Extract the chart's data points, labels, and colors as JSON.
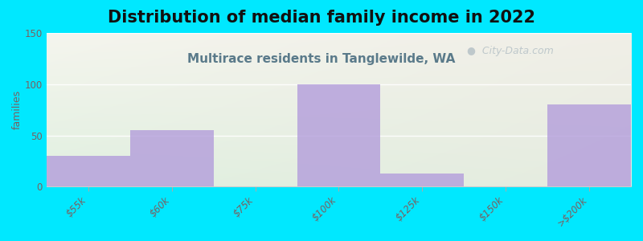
{
  "title": "Distribution of median family income in 2022",
  "subtitle": "Multirace residents in Tanglewilde, WA",
  "categories": [
    "$55k",
    "$60k",
    "$75k",
    "$100k",
    "$125k",
    "$150k",
    ">$200k"
  ],
  "values": [
    30,
    55,
    0,
    100,
    13,
    0,
    80
  ],
  "bar_color": "#b39ddb",
  "bar_alpha": 0.8,
  "background_outer": "#00e8ff",
  "ylabel": "families",
  "ylim": [
    0,
    150
  ],
  "yticks": [
    0,
    50,
    100,
    150
  ],
  "title_fontsize": 15,
  "title_color": "#111111",
  "subtitle_fontsize": 11,
  "subtitle_color": "#5a7a8a",
  "tick_label_color": "#7a6060",
  "tick_label_fontsize": 8.5,
  "ylabel_fontsize": 9,
  "ylabel_color": "#7a6060",
  "watermark": "  City-Data.com",
  "watermark_color": "#aab8c0",
  "watermark_alpha": 0.7,
  "gradient_top_color": "#f5f5ee",
  "gradient_bottom_color": "#e0f0e0"
}
